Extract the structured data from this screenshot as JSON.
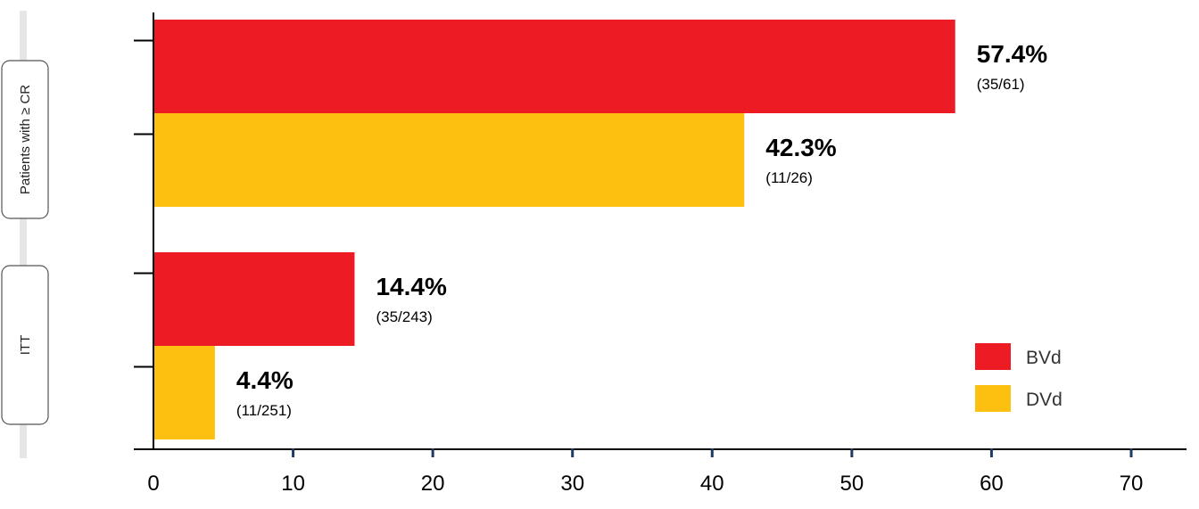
{
  "chart_data": {
    "type": "bar",
    "orientation": "horizontal",
    "groups": [
      "Patients with ≥ CR",
      "ITT"
    ],
    "series": [
      {
        "name": "BVd",
        "color": "#ED1C24",
        "values": [
          57.4,
          14.4
        ],
        "labels": [
          "57.4%",
          "14.4%"
        ],
        "fractions": [
          "(35/61)",
          "(35/243)"
        ]
      },
      {
        "name": "DVd",
        "color": "#FDC010",
        "values": [
          42.3,
          4.4
        ],
        "labels": [
          "42.3%",
          "4.4%"
        ],
        "fractions": [
          "(11/26)",
          "(11/251)"
        ]
      }
    ],
    "xlim": [
      0,
      70
    ],
    "xticks": [
      "0",
      "10",
      "20",
      "30",
      "40",
      "50",
      "60",
      "70"
    ],
    "legend_position": "right",
    "grid": false
  }
}
